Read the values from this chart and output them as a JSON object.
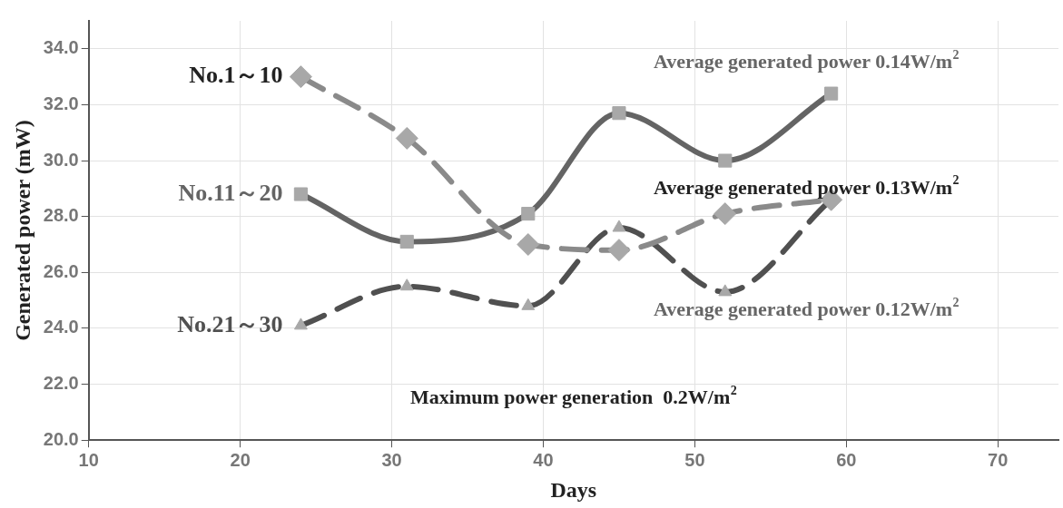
{
  "chart_data": {
    "type": "line",
    "xlabel": "Days",
    "ylabel": "Generated power (mW)",
    "x": [
      24,
      31,
      39,
      45,
      52,
      59
    ],
    "series": [
      {
        "name": "No.1～10",
        "color": "#8a8a8a",
        "values": [
          33.0,
          30.8,
          27.0,
          26.8,
          28.1,
          28.6
        ],
        "marker": "diamond",
        "line_style": "dashed"
      },
      {
        "name": "No.11～20",
        "color": "#646464",
        "values": [
          28.8,
          27.1,
          28.1,
          31.7,
          30.0,
          32.4
        ],
        "marker": "square",
        "line_style": "solid"
      },
      {
        "name": "No.21～30",
        "color": "#505050",
        "values": [
          24.1,
          25.5,
          24.8,
          27.6,
          25.3,
          28.6
        ],
        "marker": "triangle",
        "line_style": "dashed"
      }
    ],
    "annotations": [
      "Average generated power 0.14W/m$^{2}$",
      "Average generated power 0.13W/m$^{2}$",
      "Average generated power 0.12W/m$^{2}$",
      "Maximum power generation  0.2W/m$^{2}$"
    ],
    "xlim": [
      10,
      74
    ],
    "xticks": [
      10,
      20,
      30,
      40,
      50,
      60,
      70
    ],
    "ylim": [
      20,
      35
    ],
    "yticks": [
      {
        "value": 20,
        "label": "20.0"
      },
      {
        "value": 22,
        "label": "22.0"
      },
      {
        "value": 24,
        "label": "24.0"
      },
      {
        "value": 26,
        "label": "26.0"
      },
      {
        "value": 28,
        "label": "28.0"
      },
      {
        "value": 30,
        "label": "30.0"
      },
      {
        "value": 32,
        "label": "32.0"
      },
      {
        "value": 34,
        "label": "34.0"
      }
    ],
    "grid": true,
    "legend": false
  }
}
